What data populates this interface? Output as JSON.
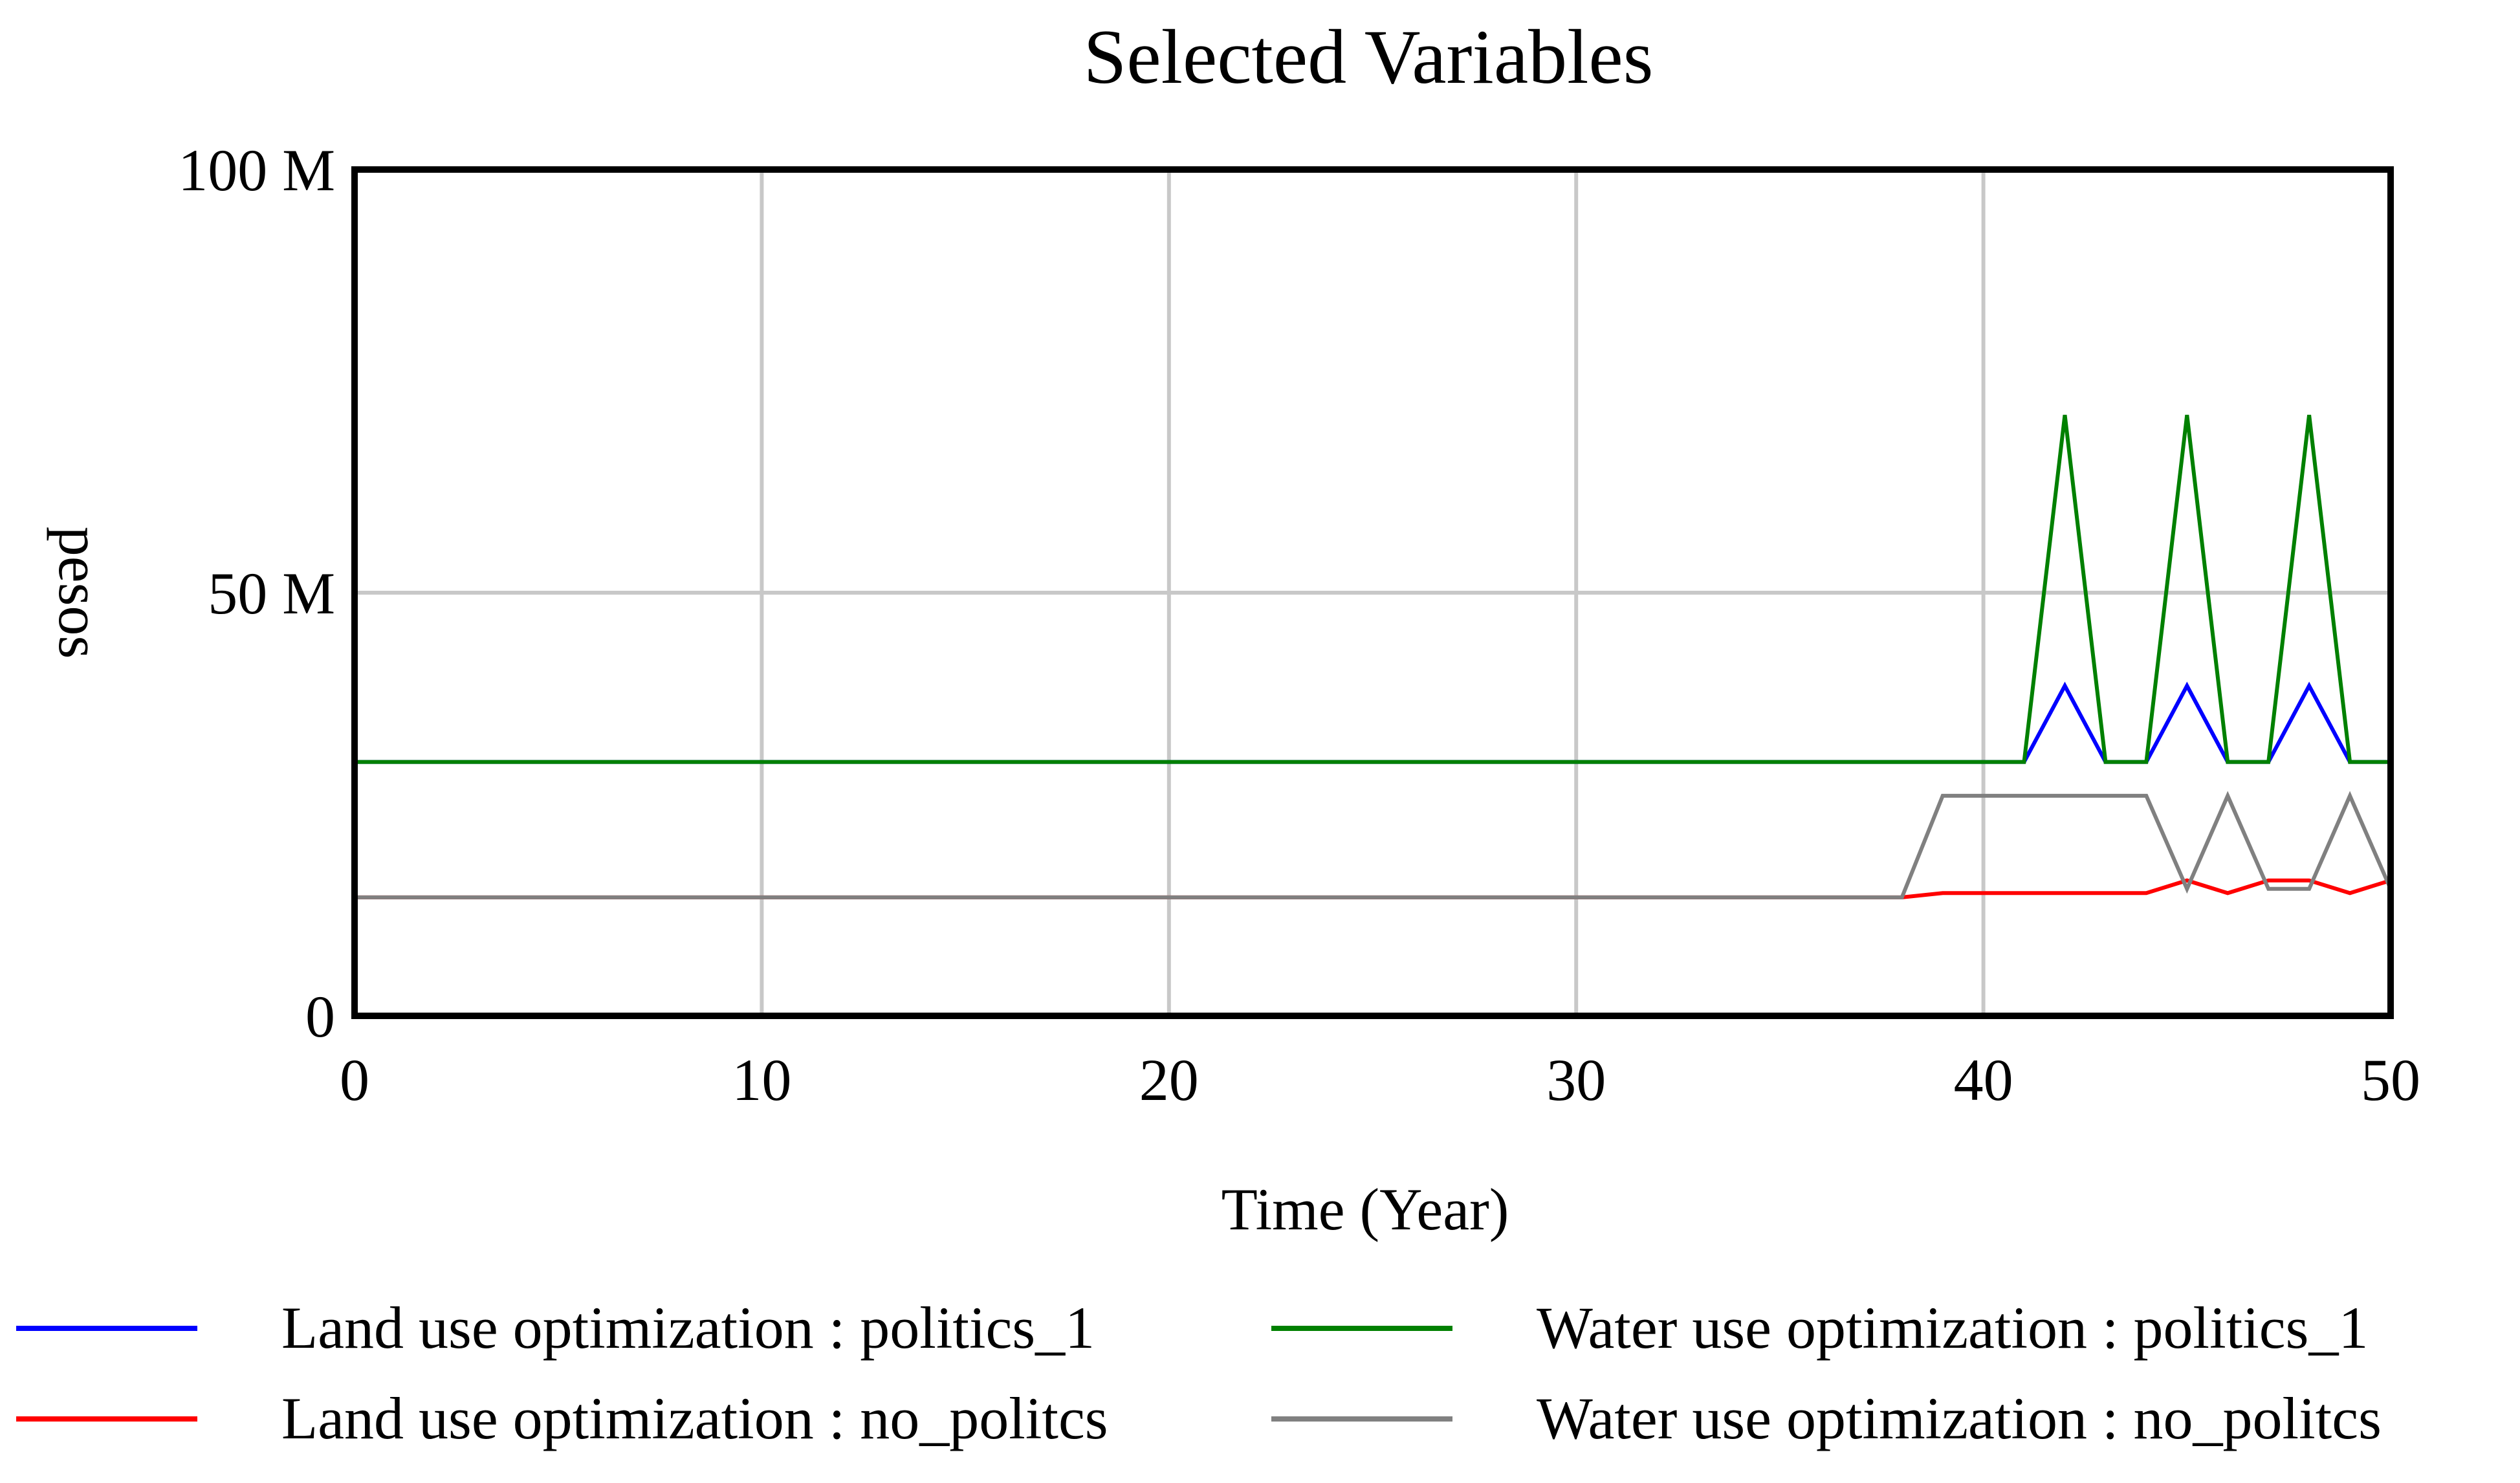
{
  "chart_data": {
    "type": "line",
    "title": "Selected Variables",
    "xlabel": "Time (Year)",
    "ylabel": "pesos",
    "xlim": [
      0,
      50
    ],
    "ylim": [
      0,
      100000000
    ],
    "x_ticks": [
      0,
      10,
      20,
      30,
      40,
      50
    ],
    "x_tick_labels": [
      "0",
      "10",
      "20",
      "30",
      "40",
      "50"
    ],
    "y_ticks": [
      0,
      50000000,
      100000000
    ],
    "y_tick_labels": [
      "0",
      "50 M",
      "100 M"
    ],
    "grid": true,
    "series": [
      {
        "name": "Land use optimization : politics_1",
        "color": "#0000ff",
        "points": [
          [
            0,
            30000000
          ],
          [
            41,
            30000000
          ],
          [
            42,
            39000000
          ],
          [
            43,
            30000000
          ],
          [
            44,
            30000000
          ],
          [
            45,
            39000000
          ],
          [
            46,
            30000000
          ],
          [
            47,
            30000000
          ],
          [
            48,
            39000000
          ],
          [
            49,
            30000000
          ],
          [
            50,
            30000000
          ]
        ]
      },
      {
        "name": "Water use optimization : politics_1",
        "color": "#008000",
        "points": [
          [
            0,
            30000000
          ],
          [
            41,
            30000000
          ],
          [
            42,
            71000000
          ],
          [
            43,
            30000000
          ],
          [
            44,
            30000000
          ],
          [
            45,
            71000000
          ],
          [
            46,
            30000000
          ],
          [
            47,
            30000000
          ],
          [
            48,
            71000000
          ],
          [
            49,
            30000000
          ],
          [
            50,
            30000000
          ]
        ]
      },
      {
        "name": "Land use optimization : no_politcs",
        "color": "#ff0000",
        "points": [
          [
            0,
            14000000
          ],
          [
            38,
            14000000
          ],
          [
            39,
            14500000
          ],
          [
            44,
            14500000
          ],
          [
            45,
            16000000
          ],
          [
            46,
            14500000
          ],
          [
            47,
            16000000
          ],
          [
            48,
            16000000
          ],
          [
            49,
            14500000
          ],
          [
            50,
            16000000
          ]
        ]
      },
      {
        "name": "Water use optimization : no_politcs",
        "color": "#808080",
        "points": [
          [
            0,
            14000000
          ],
          [
            38,
            14000000
          ],
          [
            39,
            26000000
          ],
          [
            44,
            26000000
          ],
          [
            45,
            15000000
          ],
          [
            46,
            26000000
          ],
          [
            47,
            15000000
          ],
          [
            48,
            15000000
          ],
          [
            49,
            26000000
          ],
          [
            50,
            15000000
          ]
        ]
      }
    ],
    "legend": {
      "placement": "bottom",
      "columns": 2,
      "order": [
        0,
        1,
        2,
        3
      ]
    }
  }
}
